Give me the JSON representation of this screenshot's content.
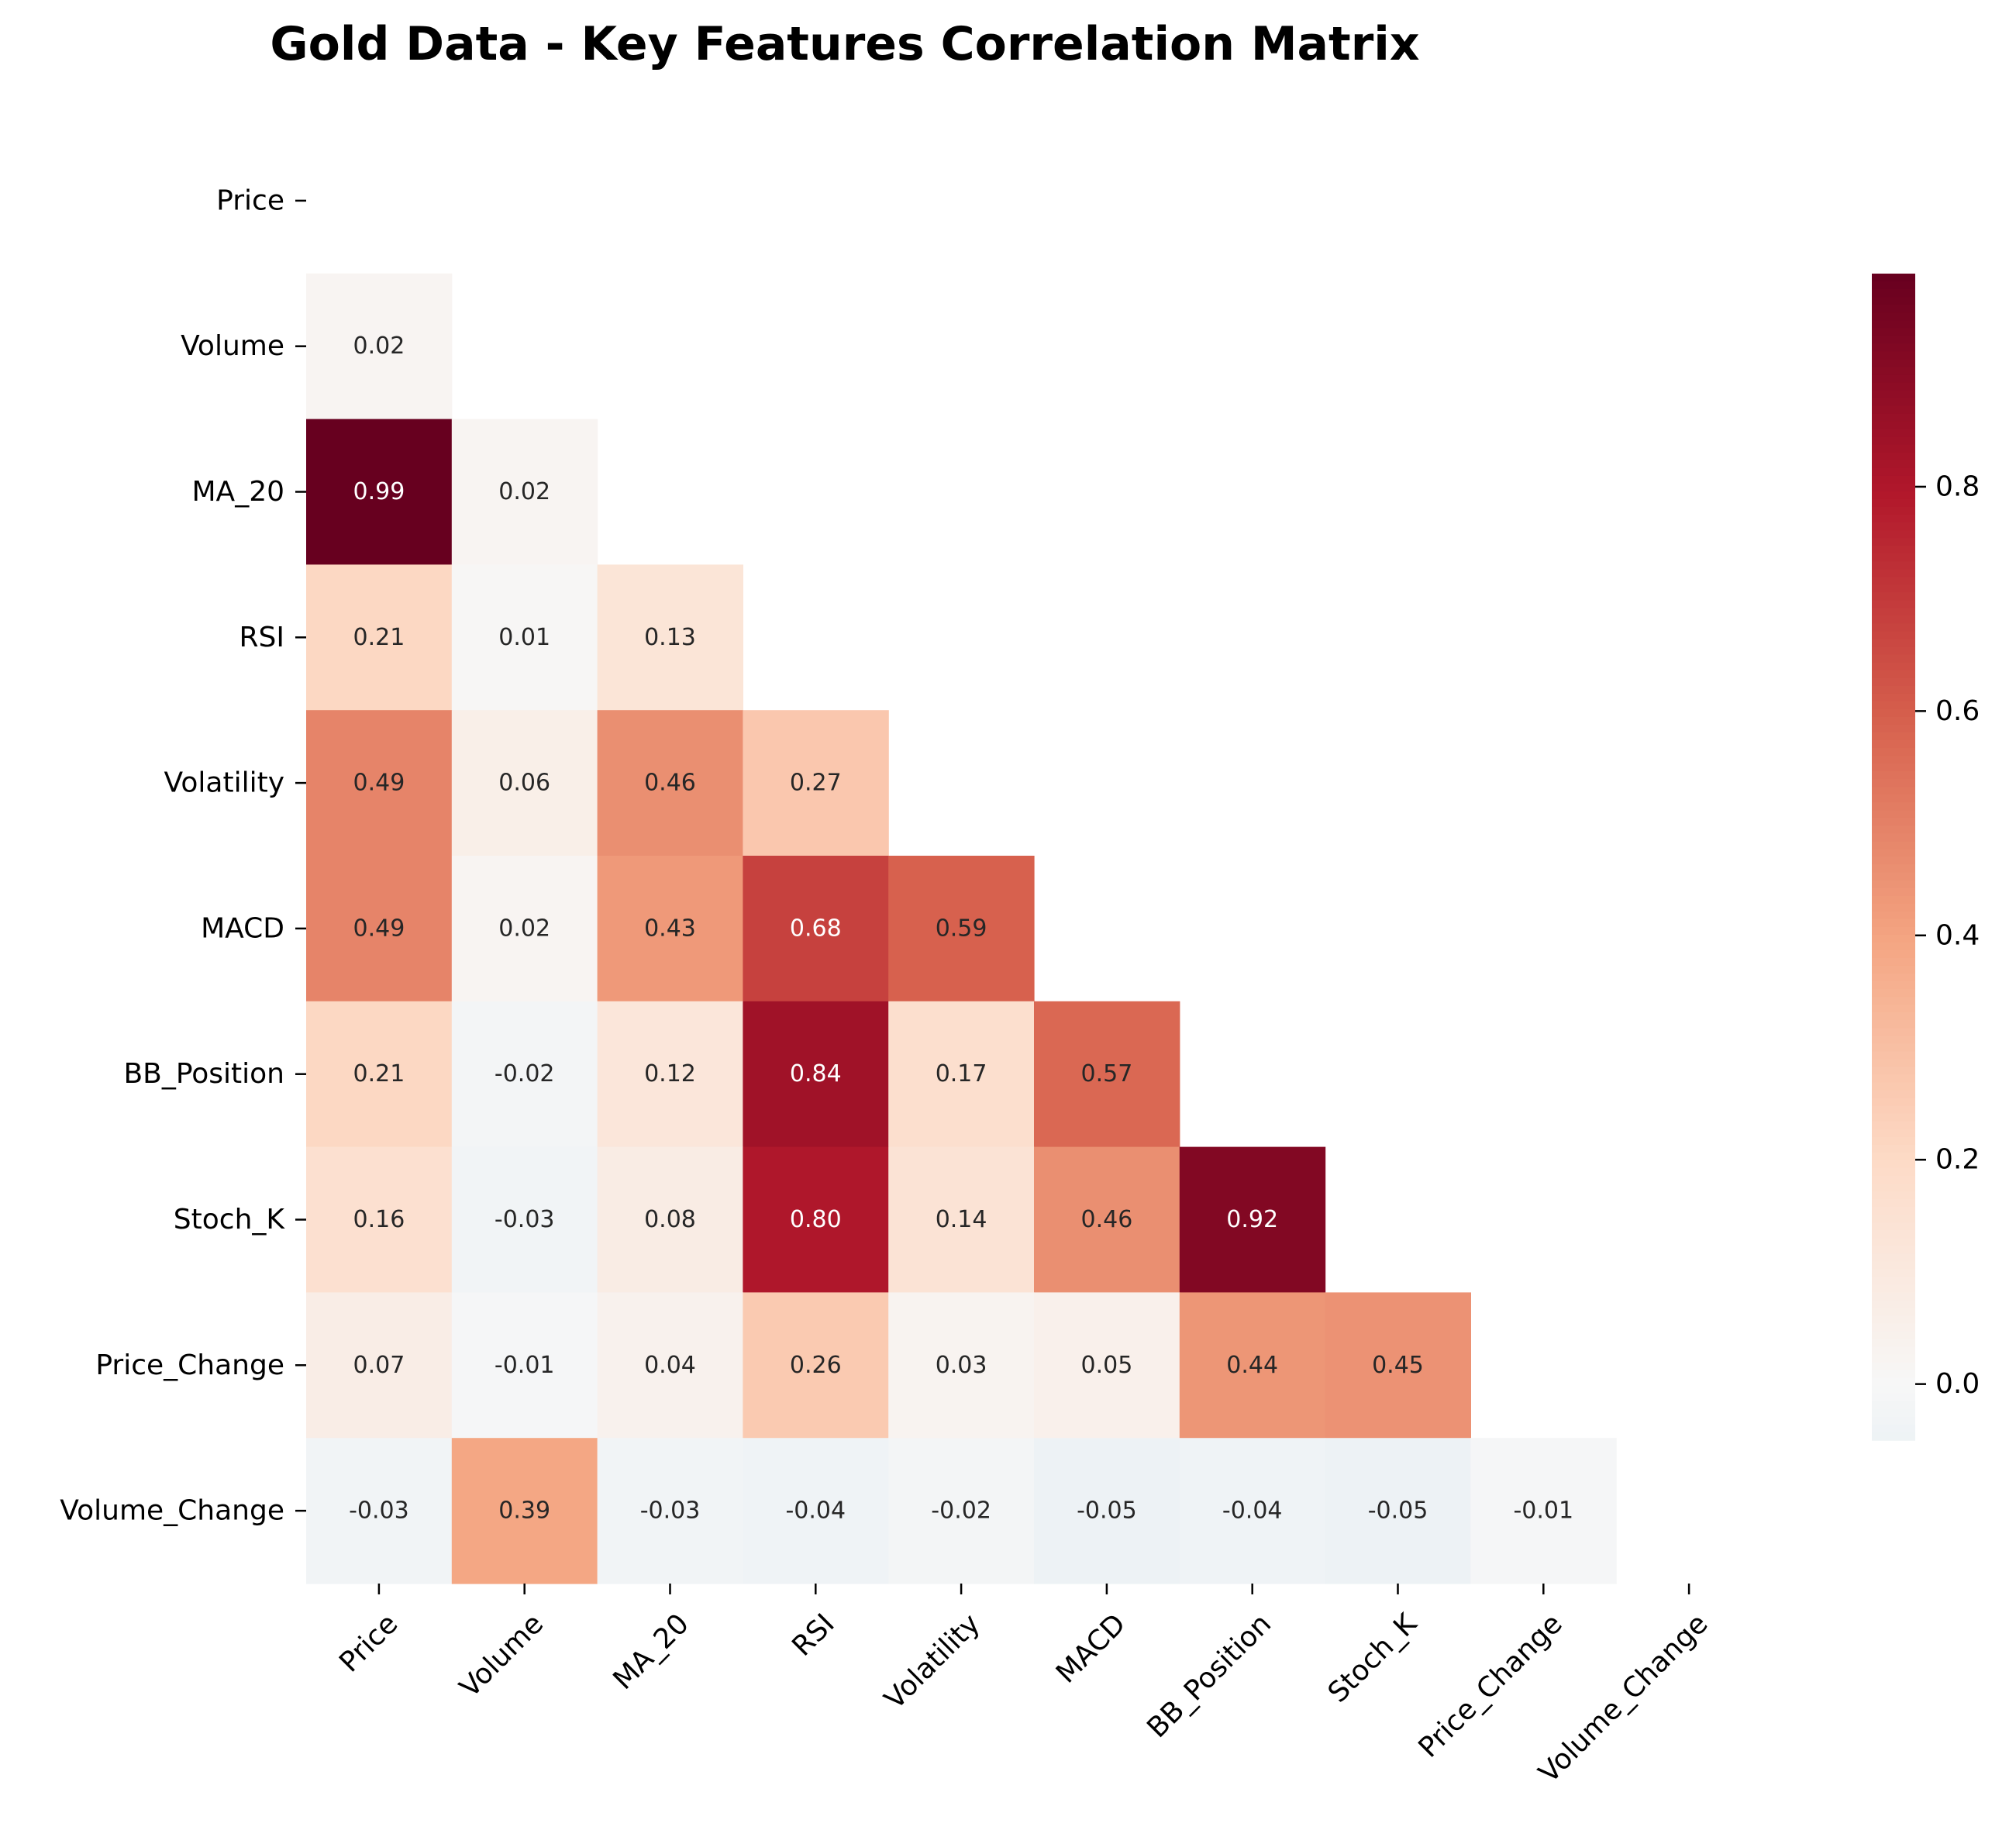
{
  "chart_data": {
    "type": "heatmap",
    "title": "Gold Data - Key Features Correlation Matrix",
    "xlabel": "",
    "ylabel": "",
    "variables": [
      "Price",
      "Volume",
      "MA_20",
      "RSI",
      "Volatility",
      "MACD",
      "BB_Position",
      "Stoch_K",
      "Price_Change",
      "Volume_Change"
    ],
    "mask": "upper-triangle-including-diagonal",
    "matrix": [
      [
        null,
        null,
        null,
        null,
        null,
        null,
        null,
        null,
        null,
        null
      ],
      [
        0.02,
        null,
        null,
        null,
        null,
        null,
        null,
        null,
        null,
        null
      ],
      [
        0.99,
        0.02,
        null,
        null,
        null,
        null,
        null,
        null,
        null,
        null
      ],
      [
        0.21,
        0.01,
        0.13,
        null,
        null,
        null,
        null,
        null,
        null,
        null
      ],
      [
        0.49,
        0.06,
        0.46,
        0.27,
        null,
        null,
        null,
        null,
        null,
        null
      ],
      [
        0.49,
        0.02,
        0.43,
        0.68,
        0.59,
        null,
        null,
        null,
        null,
        null
      ],
      [
        0.21,
        -0.02,
        0.12,
        0.84,
        0.17,
        0.57,
        null,
        null,
        null,
        null
      ],
      [
        0.16,
        -0.03,
        0.08,
        0.8,
        0.14,
        0.46,
        0.92,
        null,
        null,
        null
      ],
      [
        0.07,
        -0.01,
        0.04,
        0.26,
        0.03,
        0.05,
        0.44,
        0.45,
        null,
        null
      ],
      [
        -0.03,
        0.39,
        -0.03,
        -0.04,
        -0.02,
        -0.05,
        -0.04,
        -0.05,
        -0.01,
        null
      ]
    ],
    "colormap": "RdBu_r",
    "colorbar": {
      "min": -0.05,
      "max": 0.99,
      "ticks": [
        0.0,
        0.2,
        0.4,
        0.6,
        0.8
      ],
      "tick_labels": [
        "0.0",
        "0.2",
        "0.4",
        "0.6",
        "0.8"
      ]
    },
    "grid": false,
    "legend": "colorbar-right"
  }
}
